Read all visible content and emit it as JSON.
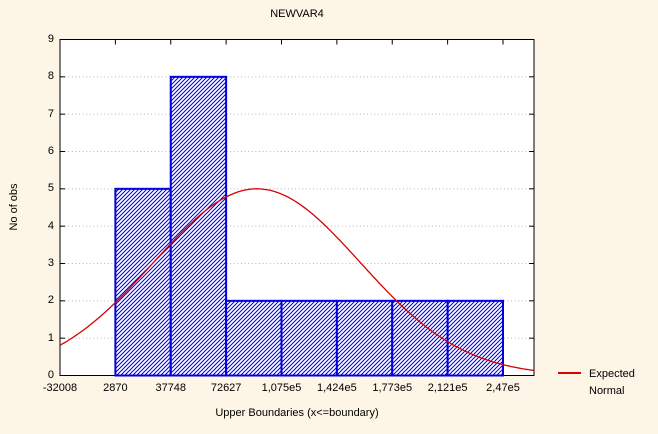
{
  "window": {
    "background_color": "#FDF5E6",
    "plot_background_color": "#FFFFFF"
  },
  "chart_data": {
    "type": "bar",
    "subtype": "histogram-with-normal-curve",
    "title": "NEWVAR4",
    "xlabel": "Upper Boundaries (x<=boundary)",
    "ylabel": "No of obs",
    "x_tick_labels": [
      "-32008",
      "2870",
      "37748",
      "72627",
      "1,075e5",
      "1,424e5",
      "1,773e5",
      "2,121e5",
      "2,47e5"
    ],
    "x_boundaries": [
      -32008,
      2870,
      37748,
      72627,
      107505,
      142384,
      177262,
      212141,
      247019
    ],
    "categories": [
      "-32008 to 2870",
      "2870 to 37748",
      "37748 to 72627",
      "72627 to 1,075e5",
      "1,075e5 to 1,424e5",
      "1,424e5 to 1,773e5",
      "1,773e5 to 2,121e5",
      "2,121e5 to 2,47e5"
    ],
    "values": [
      0,
      5,
      8,
      2,
      2,
      2,
      2,
      2
    ],
    "y_ticks": [
      0,
      1,
      2,
      3,
      4,
      5,
      6,
      7,
      8,
      9
    ],
    "ylim": [
      0,
      9
    ],
    "grid": "horizontal dotted lines at integer y values",
    "bar_style": {
      "edge_color": "#0000DC",
      "hatch_color": "#0000DC",
      "hatch": "diagonal-forward-slash",
      "fill": "#FFFFFF"
    },
    "curve": {
      "name": "Expected Normal",
      "color": "#D80000",
      "mean": 92000,
      "sd": 65000,
      "peak": 5
    },
    "legend": {
      "position": "bottom-right",
      "line1": "Expected",
      "line2": "Normal",
      "swatch": "red-line"
    },
    "gridline_color": "#B5B5B5",
    "axis_color": "#000000"
  }
}
